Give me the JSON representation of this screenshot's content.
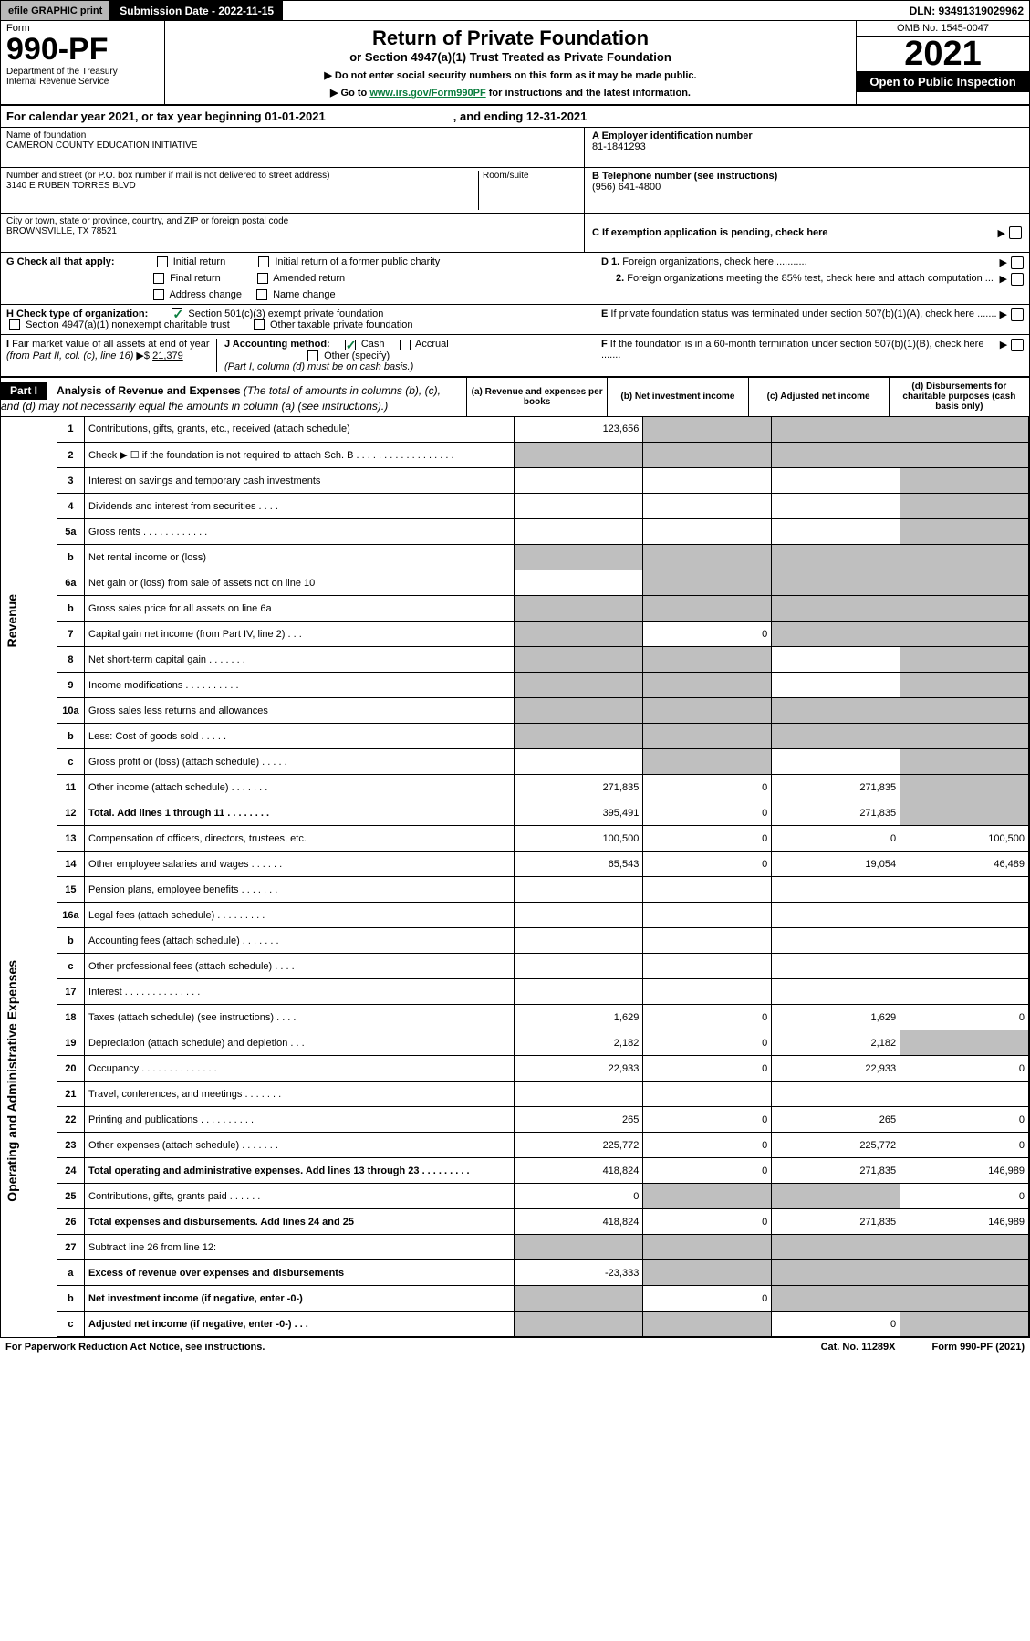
{
  "topbar": {
    "efile": "efile GRAPHIC print",
    "subdate": "Submission Date - 2022-11-15",
    "dln": "DLN: 93491319029962"
  },
  "header": {
    "form_label": "Form",
    "form_num": "990-PF",
    "dept": "Department of the Treasury\nInternal Revenue Service",
    "title": "Return of Private Foundation",
    "subtitle": "or Section 4947(a)(1) Trust Treated as Private Foundation",
    "instr1": "▶ Do not enter social security numbers on this form as it may be made public.",
    "instr2_pre": "▶ Go to ",
    "instr2_link": "www.irs.gov/Form990PF",
    "instr2_post": " for instructions and the latest information.",
    "omb": "OMB No. 1545-0047",
    "year": "2021",
    "open": "Open to Public Inspection"
  },
  "calyear": {
    "pre": "For calendar year 2021, or tax year beginning 01-01-2021",
    "mid": ", and ending 12-31-2021"
  },
  "info": {
    "name_label": "Name of foundation",
    "name": "CAMERON COUNTY EDUCATION INITIATIVE",
    "addr_label": "Number and street (or P.O. box number if mail is not delivered to street address)",
    "addr": "3140 E RUBEN TORRES BLVD",
    "room_label": "Room/suite",
    "city_label": "City or town, state or province, country, and ZIP or foreign postal code",
    "city": "BROWNSVILLE, TX  78521",
    "a_label": "A Employer identification number",
    "a_val": "81-1841293",
    "b_label": "B Telephone number (see instructions)",
    "b_val": "(956) 641-4800",
    "c_label": "C If exemption application is pending, check here"
  },
  "checks": {
    "g_label": "G Check all that apply:",
    "g_opts": [
      "Initial return",
      "Initial return of a former public charity",
      "Final return",
      "Amended return",
      "Address change",
      "Name change"
    ],
    "h_label": "H Check type of organization:",
    "h_opt1": "Section 501(c)(3) exempt private foundation",
    "h_opt2": "Section 4947(a)(1) nonexempt charitable trust",
    "h_opt3": "Other taxable private foundation",
    "i_label": "I Fair market value of all assets at end of year (from Part II, col. (c), line 16)",
    "i_val": "21,379",
    "j_label": "J Accounting method:",
    "j_cash": "Cash",
    "j_accrual": "Accrual",
    "j_other": "Other (specify)",
    "j_note": "(Part I, column (d) must be on cash basis.)",
    "d1": "D 1. Foreign organizations, check here............",
    "d2": "2. Foreign organizations meeting the 85% test, check here and attach computation ...",
    "e": "E  If private foundation status was terminated under section 507(b)(1)(A), check here .......",
    "f": "F  If the foundation is in a 60-month termination under section 507(b)(1)(B), check here ......."
  },
  "part1": {
    "label": "Part I",
    "title_b": "Analysis of Revenue and Expenses",
    "title_rest": " (The total of amounts in columns (b), (c), and (d) may not necessarily equal the amounts in column (a) (see instructions).)",
    "col_a": "(a)   Revenue and expenses per books",
    "col_b": "(b)   Net investment income",
    "col_c": "(c)   Adjusted net income",
    "col_d": "(d)   Disbursements for charitable purposes (cash basis only)"
  },
  "rows": [
    {
      "n": "1",
      "d": "Contributions, gifts, grants, etc., received (attach schedule)",
      "a": "123,656",
      "b": "g",
      "c": "g",
      "dd": "g"
    },
    {
      "n": "2",
      "d": "Check ▶ ☐ if the foundation is not required to attach Sch. B   .  .  .  .  .  .  .  .  .  .  .  .  .  .  .  .  .  .",
      "a": "g",
      "b": "g",
      "c": "g",
      "dd": "g"
    },
    {
      "n": "3",
      "d": "Interest on savings and temporary cash investments",
      "a": "",
      "b": "",
      "c": "",
      "dd": "g"
    },
    {
      "n": "4",
      "d": "Dividends and interest from securities   .   .   .   .",
      "a": "",
      "b": "",
      "c": "",
      "dd": "g"
    },
    {
      "n": "5a",
      "d": "Gross rents   .   .   .   .   .   .   .   .   .   .   .   .",
      "a": "",
      "b": "",
      "c": "",
      "dd": "g"
    },
    {
      "n": "b",
      "d": "Net rental income or (loss)  ",
      "a": "g",
      "b": "g",
      "c": "g",
      "dd": "g"
    },
    {
      "n": "6a",
      "d": "Net gain or (loss) from sale of assets not on line 10",
      "a": "",
      "b": "g",
      "c": "g",
      "dd": "g"
    },
    {
      "n": "b",
      "d": "Gross sales price for all assets on line 6a",
      "a": "g",
      "b": "g",
      "c": "g",
      "dd": "g"
    },
    {
      "n": "7",
      "d": "Capital gain net income (from Part IV, line 2)   .   .   .",
      "a": "g",
      "b": "0",
      "c": "g",
      "dd": "g"
    },
    {
      "n": "8",
      "d": "Net short-term capital gain   .   .   .   .   .   .   .",
      "a": "g",
      "b": "g",
      "c": "",
      "dd": "g"
    },
    {
      "n": "9",
      "d": "Income modifications .   .   .   .   .   .   .   .   .   .",
      "a": "g",
      "b": "g",
      "c": "",
      "dd": "g"
    },
    {
      "n": "10a",
      "d": "Gross sales less returns and allowances",
      "a": "g",
      "b": "g",
      "c": "g",
      "dd": "g"
    },
    {
      "n": "b",
      "d": "Less: Cost of goods sold   .   .   .   .   .",
      "a": "g",
      "b": "g",
      "c": "g",
      "dd": "g"
    },
    {
      "n": "c",
      "d": "Gross profit or (loss) (attach schedule)    .   .   .   .   .",
      "a": "",
      "b": "g",
      "c": "",
      "dd": "g"
    },
    {
      "n": "11",
      "d": "Other income (attach schedule)   .   .   .   .   .   .   .",
      "a": "271,835",
      "b": "0",
      "c": "271,835",
      "dd": "g"
    },
    {
      "n": "12",
      "d": "Total. Add lines 1 through 11   .   .   .   .   .   .   .   .",
      "a": "395,491",
      "b": "0",
      "c": "271,835",
      "dd": "g",
      "bold": true
    },
    {
      "n": "13",
      "d": "Compensation of officers, directors, trustees, etc.",
      "a": "100,500",
      "b": "0",
      "c": "0",
      "dd": "100,500"
    },
    {
      "n": "14",
      "d": "Other employee salaries and wages   .   .   .   .   .   .",
      "a": "65,543",
      "b": "0",
      "c": "19,054",
      "dd": "46,489"
    },
    {
      "n": "15",
      "d": "Pension plans, employee benefits  .   .   .   .   .   .   .",
      "a": "",
      "b": "",
      "c": "",
      "dd": ""
    },
    {
      "n": "16a",
      "d": "Legal fees (attach schedule) .   .   .   .   .   .   .   .   .",
      "a": "",
      "b": "",
      "c": "",
      "dd": ""
    },
    {
      "n": "b",
      "d": "Accounting fees (attach schedule)  .   .   .   .   .   .   .",
      "a": "",
      "b": "",
      "c": "",
      "dd": ""
    },
    {
      "n": "c",
      "d": "Other professional fees (attach schedule)   .   .   .   .",
      "a": "",
      "b": "",
      "c": "",
      "dd": ""
    },
    {
      "n": "17",
      "d": "Interest  .   .   .   .   .   .   .   .   .   .   .   .   .   .",
      "a": "",
      "b": "",
      "c": "",
      "dd": ""
    },
    {
      "n": "18",
      "d": "Taxes (attach schedule) (see instructions)   .   .   .   .",
      "a": "1,629",
      "b": "0",
      "c": "1,629",
      "dd": "0"
    },
    {
      "n": "19",
      "d": "Depreciation (attach schedule) and depletion   .   .   .",
      "a": "2,182",
      "b": "0",
      "c": "2,182",
      "dd": "g"
    },
    {
      "n": "20",
      "d": "Occupancy .   .   .   .   .   .   .   .   .   .   .   .   .   .",
      "a": "22,933",
      "b": "0",
      "c": "22,933",
      "dd": "0"
    },
    {
      "n": "21",
      "d": "Travel, conferences, and meetings .   .   .   .   .   .   .",
      "a": "",
      "b": "",
      "c": "",
      "dd": ""
    },
    {
      "n": "22",
      "d": "Printing and publications .   .   .   .   .   .   .   .   .   .",
      "a": "265",
      "b": "0",
      "c": "265",
      "dd": "0"
    },
    {
      "n": "23",
      "d": "Other expenses (attach schedule)  .   .   .   .   .   .   .",
      "a": "225,772",
      "b": "0",
      "c": "225,772",
      "dd": "0"
    },
    {
      "n": "24",
      "d": "Total operating and administrative expenses. Add lines 13 through 23   .   .   .   .   .   .   .   .   .",
      "a": "418,824",
      "b": "0",
      "c": "271,835",
      "dd": "146,989",
      "bold": true
    },
    {
      "n": "25",
      "d": "Contributions, gifts, grants paid    .   .   .   .   .   .",
      "a": "0",
      "b": "g",
      "c": "g",
      "dd": "0"
    },
    {
      "n": "26",
      "d": "Total expenses and disbursements. Add lines 24 and 25",
      "a": "418,824",
      "b": "0",
      "c": "271,835",
      "dd": "146,989",
      "bold": true
    },
    {
      "n": "27",
      "d": "Subtract line 26 from line 12:",
      "a": "g",
      "b": "g",
      "c": "g",
      "dd": "g"
    },
    {
      "n": "a",
      "d": "Excess of revenue over expenses and disbursements",
      "a": "-23,333",
      "b": "g",
      "c": "g",
      "dd": "g",
      "bold": true
    },
    {
      "n": "b",
      "d": "Net investment income (if negative, enter -0-)",
      "a": "g",
      "b": "0",
      "c": "g",
      "dd": "g",
      "bold": true
    },
    {
      "n": "c",
      "d": "Adjusted net income (if negative, enter -0-)   .   .   .",
      "a": "g",
      "b": "g",
      "c": "0",
      "dd": "g",
      "bold": true
    }
  ],
  "side_labels": {
    "rev": "Revenue",
    "exp": "Operating and Administrative Expenses"
  },
  "footer": {
    "left": "For Paperwork Reduction Act Notice, see instructions.",
    "mid": "Cat. No. 11289X",
    "right": "Form 990-PF (2021)"
  }
}
